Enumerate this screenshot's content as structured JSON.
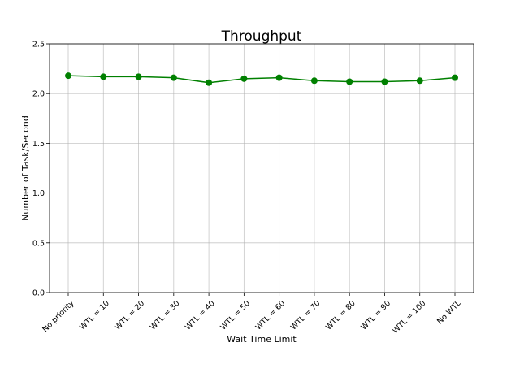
{
  "chart_data": {
    "type": "line",
    "title": "Throughput",
    "xlabel": "Wait Time Limit",
    "ylabel": "Number of Task/Second",
    "categories": [
      "No priority",
      "WTL = 10",
      "WTL = 20",
      "WTL = 30",
      "WTL = 40",
      "WTL = 50",
      "WTL = 60",
      "WTL = 70",
      "WTL = 80",
      "WTL = 90",
      "WTL = 100",
      "No WTL"
    ],
    "series": [
      {
        "values": [
          2.18,
          2.17,
          2.17,
          2.16,
          2.11,
          2.15,
          2.16,
          2.13,
          2.12,
          2.12,
          2.13,
          2.16
        ],
        "color": "#008000",
        "marker": "circle"
      }
    ],
    "ylim": [
      0,
      2.5
    ],
    "yticks": [
      "0.0",
      "0.5",
      "1.0",
      "1.5",
      "2.0",
      "2.5"
    ],
    "ytick_values": [
      0,
      0.5,
      1.0,
      1.5,
      2.0,
      2.5
    ],
    "grid": true,
    "xtick_rotation_deg": 45
  }
}
